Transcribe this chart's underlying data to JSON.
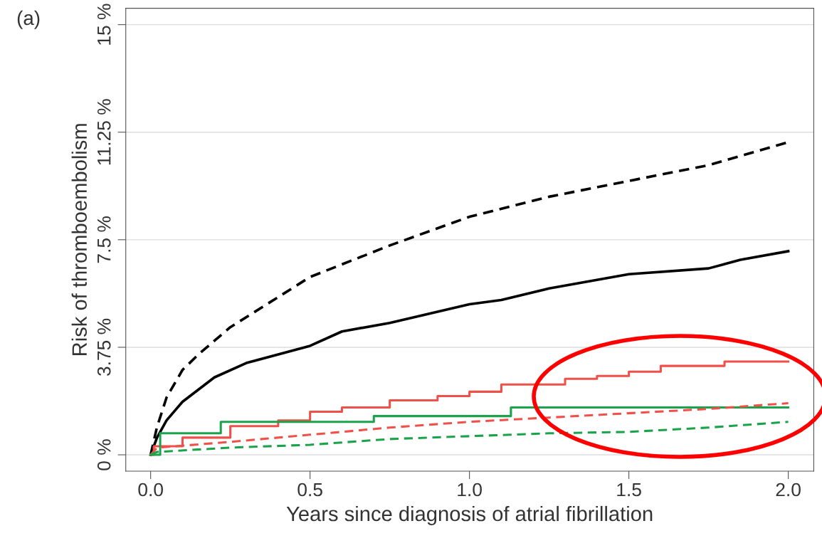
{
  "chart_data": {
    "type": "line",
    "xlabel": "Years since diagnosis of atrial fibrillation",
    "ylabel": "Risk of thromboembolism",
    "annotations": [
      "(a)"
    ],
    "xlim": [
      -0.078,
      2.08
    ],
    "ylim": [
      -0.57,
      15.57
    ],
    "xticks": [
      {
        "value": 0,
        "label": "0.0"
      },
      0.5,
      {
        "value": 1,
        "label": "1.0"
      },
      1.5,
      {
        "value": 2,
        "label": "2.0"
      }
    ],
    "yticks": [
      {
        "value": 0,
        "label": "0 %"
      },
      {
        "value": 3.75,
        "label": "3.75 %"
      },
      {
        "value": 7.5,
        "label": "7.5 %"
      },
      {
        "value": 11.25,
        "label": "11.25 %"
      },
      {
        "value": 15,
        "label": "15 %"
      }
    ],
    "grid": "y",
    "legend": false,
    "series": [
      {
        "color": "#000000",
        "line_style": "dashed",
        "x": [
          0,
          0.02,
          0.05,
          0.1,
          0.15,
          0.25,
          0.5,
          0.75,
          1.0,
          1.25,
          1.5,
          1.75,
          2.0
        ],
        "values": [
          0,
          0.97,
          2.0,
          2.96,
          3.5,
          4.45,
          6.2,
          7.3,
          8.3,
          9.0,
          9.55,
          10.1,
          10.9
        ]
      },
      {
        "color": "#000000",
        "line_style": "solid",
        "x": [
          0,
          0.02,
          0.05,
          0.1,
          0.2,
          0.3,
          0.5,
          0.6,
          0.75,
          1.0,
          1.1,
          1.25,
          1.5,
          1.75,
          1.85,
          2.0
        ],
        "values": [
          0,
          0.6,
          1.2,
          1.85,
          2.7,
          3.2,
          3.8,
          4.3,
          4.6,
          5.25,
          5.4,
          5.8,
          6.3,
          6.5,
          6.8,
          7.1
        ]
      },
      {
        "type": "step",
        "color": "#f0504a",
        "line_style": "solid",
        "x": [
          0,
          0.01,
          0.1,
          0.25,
          0.4,
          0.5,
          0.6,
          0.75,
          0.9,
          1.0,
          1.1,
          1.3,
          1.4,
          1.5,
          1.6,
          1.8,
          2.0
        ],
        "values": [
          0,
          0.3,
          0.6,
          1.0,
          1.2,
          1.5,
          1.65,
          1.9,
          2.05,
          2.2,
          2.45,
          2.65,
          2.75,
          2.9,
          3.1,
          3.25,
          3.25
        ]
      },
      {
        "type": "step",
        "color": "#1aa34a",
        "line_style": "solid",
        "x": [
          0,
          0.03,
          0.22,
          0.7,
          1.13,
          2.0
        ],
        "values": [
          0,
          0.75,
          1.15,
          1.35,
          1.65,
          1.65
        ]
      },
      {
        "color": "#f0504a",
        "line_style": "dashed",
        "x": [
          0,
          0.02,
          0.25,
          0.5,
          0.75,
          1.0,
          1.25,
          1.5,
          1.75,
          2.0
        ],
        "values": [
          0,
          0.25,
          0.45,
          0.7,
          0.95,
          1.15,
          1.3,
          1.45,
          1.6,
          1.8
        ]
      },
      {
        "color": "#1aa34a",
        "line_style": "dashed",
        "x": [
          0,
          0.02,
          0.25,
          0.5,
          0.75,
          1.0,
          1.25,
          1.5,
          1.75,
          2.0
        ],
        "values": [
          0,
          0.1,
          0.25,
          0.35,
          0.55,
          0.65,
          0.75,
          0.8,
          0.95,
          1.15
        ]
      }
    ]
  }
}
